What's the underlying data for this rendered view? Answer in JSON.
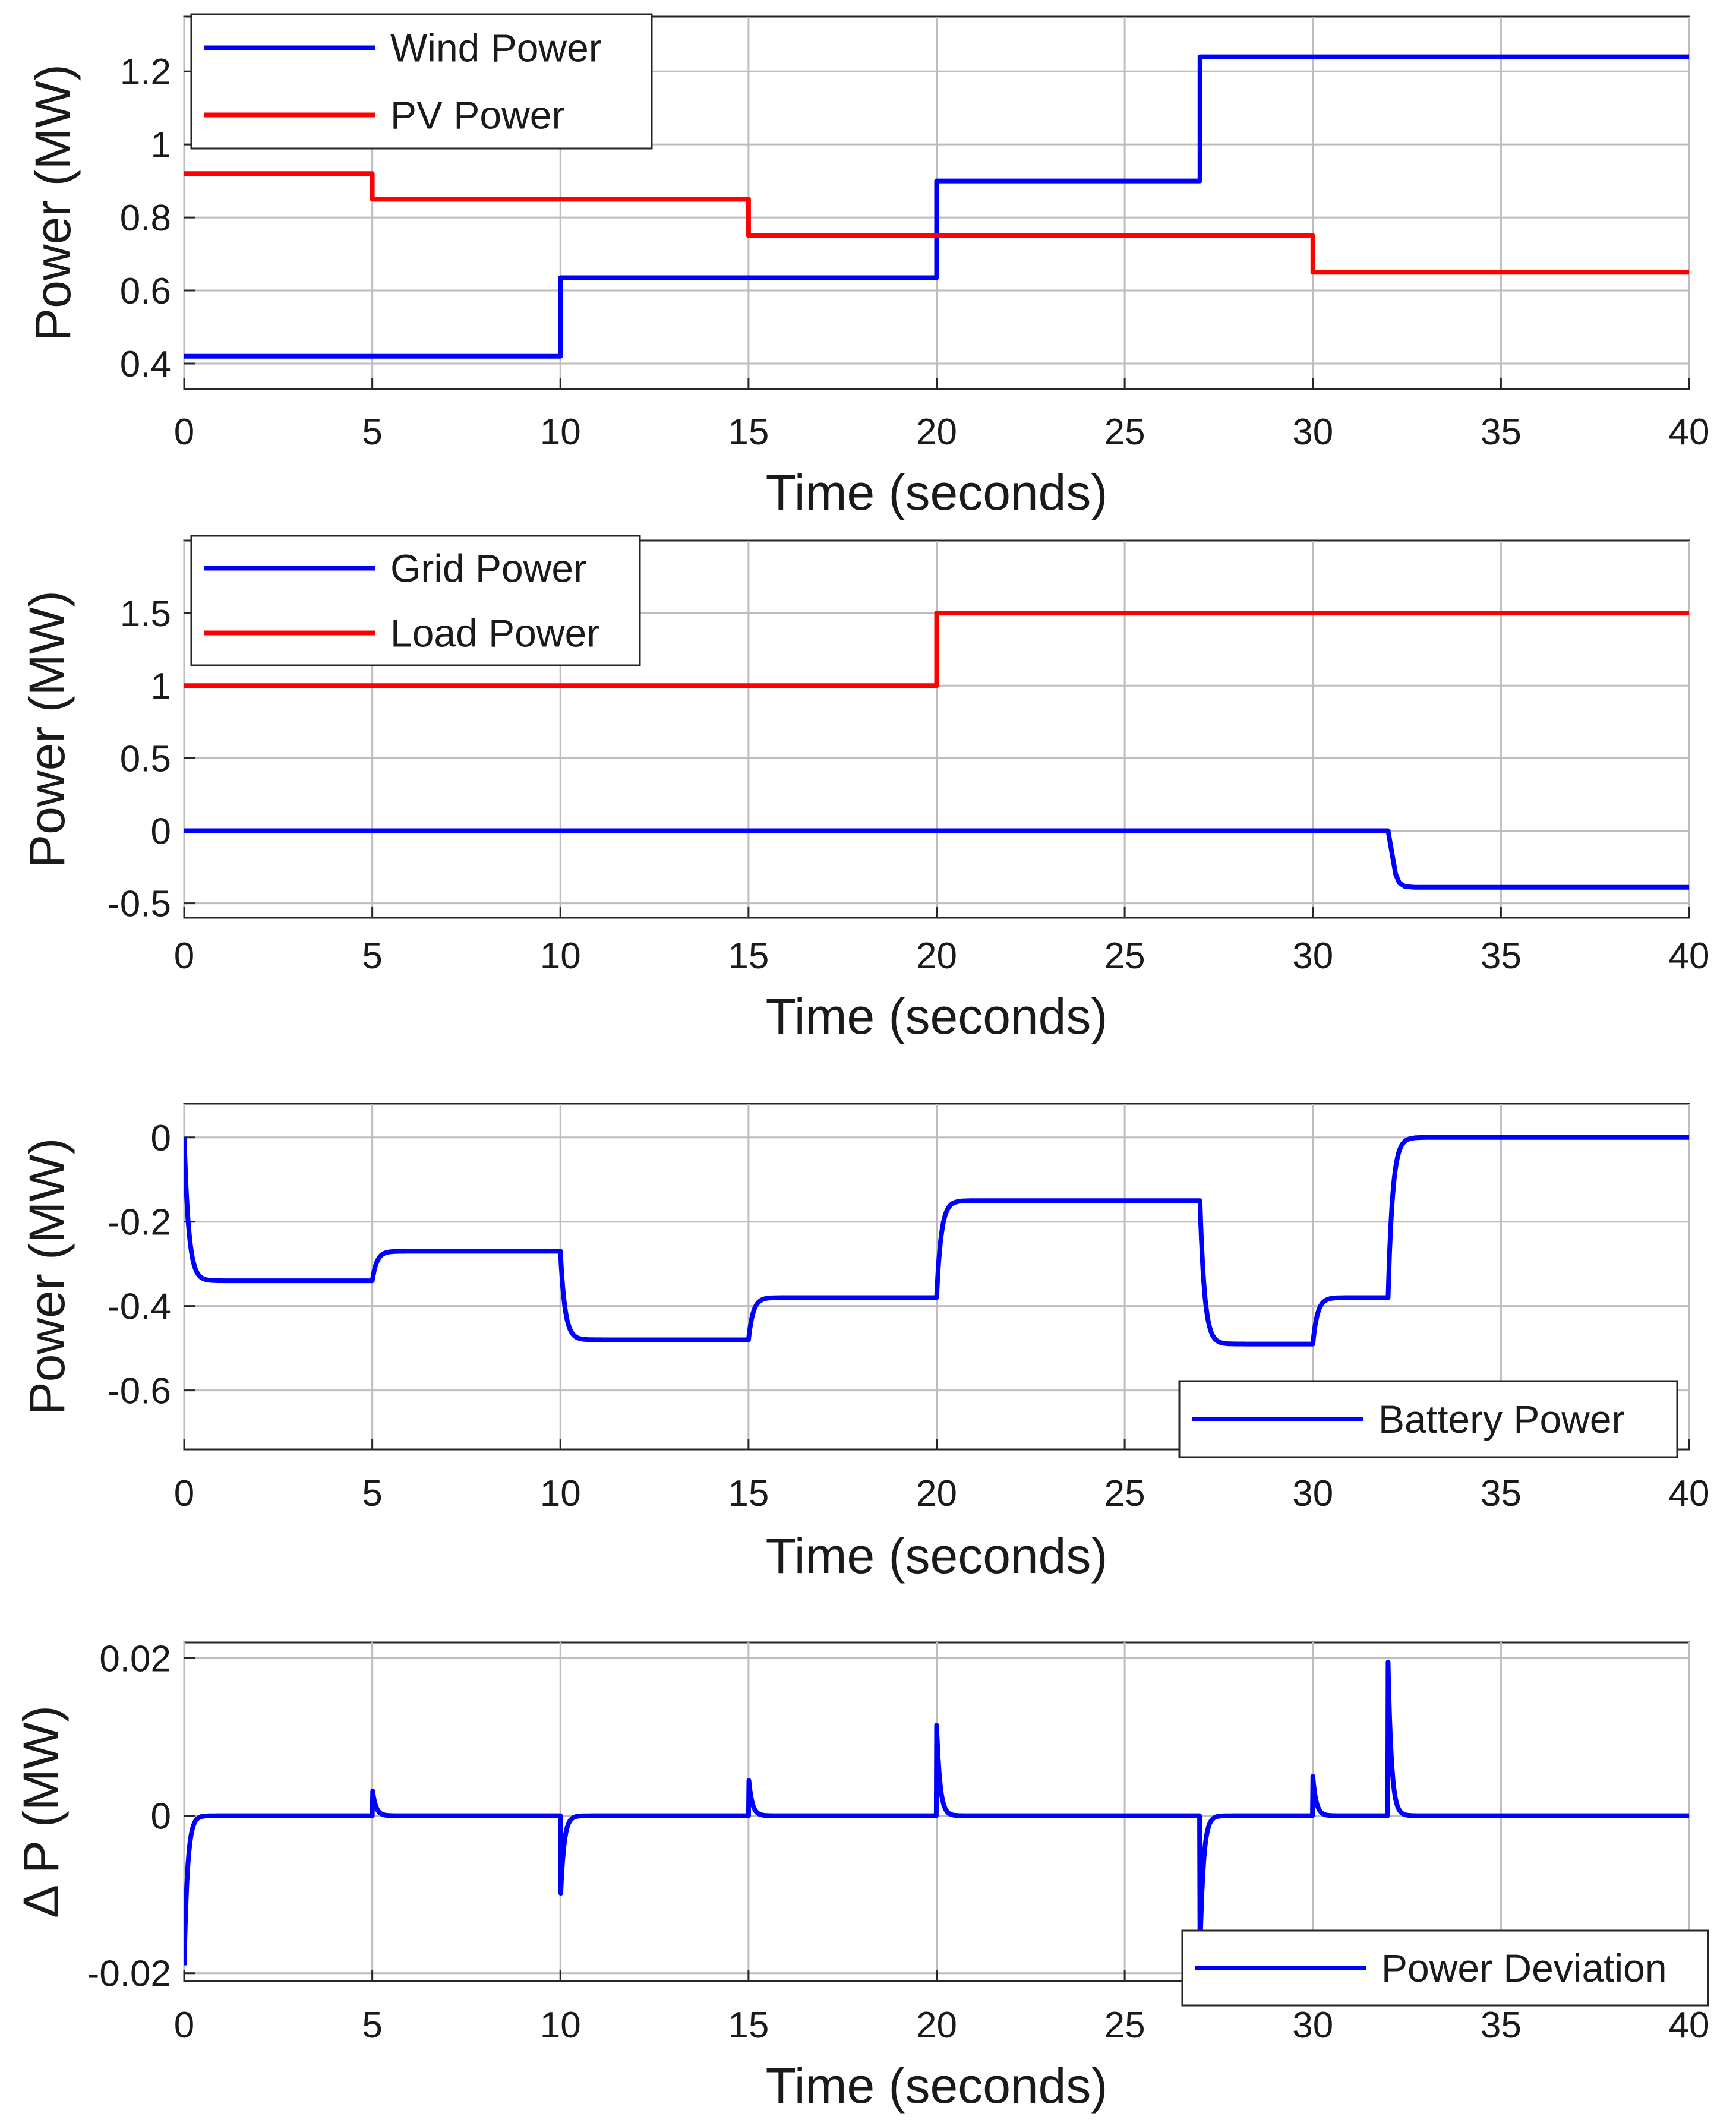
{
  "chart_data": [
    {
      "type": "line",
      "name": "power-sources",
      "xlabel": "Time (seconds)",
      "ylabel": "Power (MW)",
      "xlim": [
        0,
        40
      ],
      "ylim": [
        0.33,
        1.35
      ],
      "xticks": [
        0,
        5,
        10,
        15,
        20,
        25,
        30,
        35,
        40
      ],
      "yticks": [
        0.4,
        0.6,
        0.8,
        1,
        1.2
      ],
      "ytick_labels": [
        "0.4",
        "0.6",
        "0.8",
        "1",
        "1.2"
      ],
      "grid": true,
      "legend_position": "top-left",
      "series": [
        {
          "name": "Wind Power",
          "color": "#0000ff",
          "x": [
            0,
            10,
            10,
            20,
            20,
            27,
            27,
            40
          ],
          "y": [
            0.42,
            0.42,
            0.635,
            0.635,
            0.9,
            0.9,
            1.24,
            1.24
          ]
        },
        {
          "name": "PV Power",
          "color": "#ff0000",
          "x": [
            0,
            5,
            5,
            15,
            15,
            30,
            30,
            40
          ],
          "y": [
            0.92,
            0.92,
            0.85,
            0.85,
            0.75,
            0.75,
            0.65,
            0.65
          ]
        }
      ]
    },
    {
      "type": "line",
      "name": "grid-load",
      "xlabel": "Time (seconds)",
      "ylabel": "Power (MW)",
      "xlim": [
        0,
        40
      ],
      "ylim": [
        -0.6,
        2.0
      ],
      "xticks": [
        0,
        5,
        10,
        15,
        20,
        25,
        30,
        35,
        40
      ],
      "yticks": [
        -0.5,
        0,
        0.5,
        1,
        1.5
      ],
      "ytick_labels": [
        "-0.5",
        "0",
        "0.5",
        "1",
        "1.5"
      ],
      "grid": true,
      "legend_position": "top-left",
      "series": [
        {
          "name": "Grid Power",
          "color": "#0000ff",
          "x": [
            0,
            32,
            32.1,
            32.2,
            32.3,
            32.45,
            32.7,
            40
          ],
          "y": [
            0,
            0,
            -0.15,
            -0.3,
            -0.36,
            -0.385,
            -0.39,
            -0.39
          ]
        },
        {
          "name": "Load Power",
          "color": "#ff0000",
          "x": [
            0,
            20,
            20,
            40
          ],
          "y": [
            1,
            1,
            1.5,
            1.5
          ]
        }
      ]
    },
    {
      "type": "line",
      "name": "battery",
      "xlabel": "Time (seconds)",
      "ylabel": "Power (MW)",
      "xlim": [
        0,
        40
      ],
      "ylim": [
        -0.74,
        0.08
      ],
      "xticks": [
        0,
        5,
        10,
        15,
        20,
        25,
        30,
        35,
        40
      ],
      "yticks": [
        -0.6,
        -0.4,
        -0.2,
        0
      ],
      "ytick_labels": [
        "-0.6",
        "-0.4",
        "-0.2",
        "0"
      ],
      "grid": true,
      "legend_position": "bottom-right",
      "series": [
        {
          "name": "Battery Power",
          "color": "#0000ff",
          "segments": [
            {
              "t0": 0,
              "t1": 5,
              "from": 0,
              "to": -0.34
            },
            {
              "t0": 5,
              "t1": 10,
              "from": -0.34,
              "to": -0.27
            },
            {
              "t0": 10,
              "t1": 15,
              "from": -0.27,
              "to": -0.48
            },
            {
              "t0": 15,
              "t1": 20,
              "from": -0.48,
              "to": -0.38
            },
            {
              "t0": 20,
              "t1": 27,
              "from": -0.38,
              "to": -0.15
            },
            {
              "t0": 27,
              "t1": 30,
              "from": -0.15,
              "to": -0.49
            },
            {
              "t0": 30,
              "t1": 32,
              "from": -0.49,
              "to": -0.38
            },
            {
              "t0": 32,
              "t1": 40,
              "from": -0.38,
              "to": 0
            }
          ]
        }
      ]
    },
    {
      "type": "line",
      "name": "power-deviation",
      "xlabel": "Time (seconds)",
      "ylabel": "Δ P (MW)",
      "xlim": [
        0,
        40
      ],
      "ylim": [
        -0.021,
        0.022
      ],
      "xticks": [
        0,
        5,
        10,
        15,
        20,
        25,
        30,
        35,
        40
      ],
      "yticks": [
        -0.02,
        0,
        0.02
      ],
      "ytick_labels": [
        "-0.02",
        "0",
        "0.02"
      ],
      "grid": true,
      "legend_position": "bottom-right",
      "series": [
        {
          "name": "Power Deviation",
          "color": "#0000ff",
          "spikes": [
            {
              "t": 0,
              "peak": -0.019
            },
            {
              "t": 5,
              "peak": 0.0035
            },
            {
              "t": 10,
              "peak": -0.011
            },
            {
              "t": 15,
              "peak": 0.005
            },
            {
              "t": 20,
              "peak": 0.0115
            },
            {
              "t": 27,
              "peak": -0.0175
            },
            {
              "t": 30,
              "peak": 0.005
            },
            {
              "t": 32,
              "peak": 0.0195
            }
          ]
        }
      ]
    }
  ]
}
